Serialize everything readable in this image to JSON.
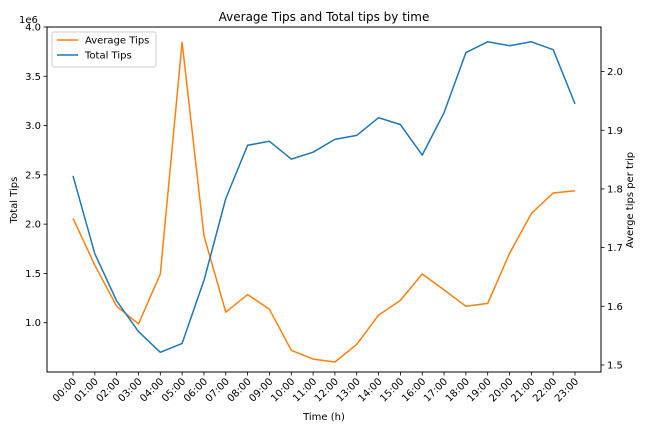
{
  "chart_data": {
    "type": "line",
    "title": "Average Tips and Total tips by time",
    "xlabel": "Time (h)",
    "ylabel_left": "Total Tips",
    "ylabel_right": "Averge tips per trip",
    "offset_label": "1e6",
    "categories": [
      "00:00",
      "01:00",
      "02:00",
      "03:00",
      "04:00",
      "05:00",
      "06:00",
      "07:00",
      "08:00",
      "09:00",
      "10:00",
      "11:00",
      "12:00",
      "13:00",
      "14:00",
      "15:00",
      "16:00",
      "17:00",
      "18:00",
      "19:00",
      "20:00",
      "21:00",
      "22:00",
      "23:00"
    ],
    "left_axis": {
      "ylim": [
        0.5,
        4.0
      ],
      "ticks": [
        1.0,
        1.5,
        2.0,
        2.5,
        3.0,
        3.5,
        4.0
      ],
      "tick_labels": [
        "1.0",
        "1.5",
        "2.0",
        "2.5",
        "3.0",
        "3.5",
        "4.0"
      ]
    },
    "right_axis": {
      "ylim": [
        1.488,
        2.076
      ],
      "ticks": [
        1.5,
        1.6,
        1.7,
        1.8,
        1.9,
        2.0
      ],
      "tick_labels": [
        "1.5",
        "1.6",
        "1.7",
        "1.8",
        "1.9",
        "2.0"
      ]
    },
    "legend_position": "top-left",
    "grid": false,
    "series": [
      {
        "name": "Average Tips",
        "axis": "right",
        "color": "#ff7f0e",
        "values": [
          1.75,
          1.67,
          1.6,
          1.57,
          1.655,
          2.05,
          1.72,
          1.59,
          1.62,
          1.595,
          1.525,
          1.51,
          1.505,
          1.535,
          1.585,
          1.61,
          1.655,
          1.628,
          1.6,
          1.605,
          1.69,
          1.758,
          1.793,
          1.797
        ]
      },
      {
        "name": "Total Tips",
        "axis": "left",
        "color": "#1f77b4",
        "values": [
          2.49,
          1.7,
          1.22,
          0.91,
          0.7,
          0.79,
          1.43,
          2.26,
          2.8,
          2.84,
          2.66,
          2.73,
          2.86,
          2.9,
          3.08,
          3.01,
          2.7,
          3.13,
          3.74,
          3.85,
          3.81,
          3.85,
          3.77,
          3.22
        ]
      }
    ]
  }
}
